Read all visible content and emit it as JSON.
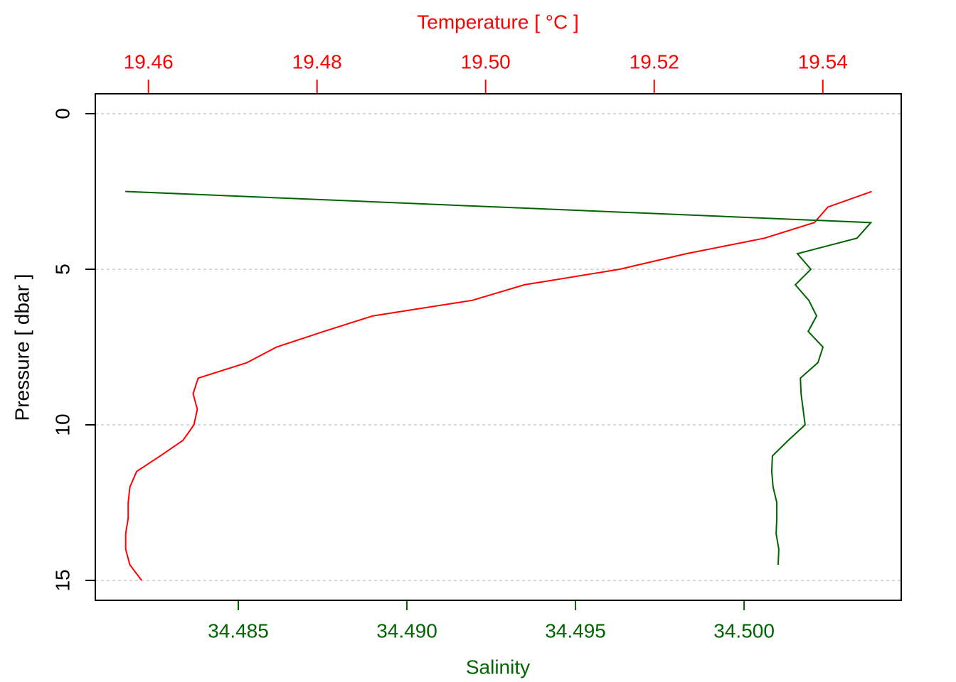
{
  "chart_data": {
    "type": "profile",
    "ylabel": "Pressure [ dbar ]",
    "ylim": [
      15.64,
      -0.64
    ],
    "yticks": [
      0,
      5,
      10,
      15
    ],
    "grid": true,
    "x2label": "Temperature [ °C ]",
    "x2label_color": "#ff0000",
    "x2lim": [
      19.4537,
      19.5493
    ],
    "x2ticks": [
      19.46,
      19.48,
      {
        "value": 19.5,
        "label": "19.50"
      },
      19.52,
      19.54
    ],
    "xlabel": "Salinity",
    "xlabel_color": "#006400",
    "xlim": [
      34.48076,
      34.50466
    ],
    "xticks": [
      34.485,
      {
        "value": 34.49,
        "label": "34.490"
      },
      34.495,
      {
        "value": 34.5,
        "label": "34.500"
      }
    ],
    "series": [
      {
        "axis": "x2",
        "color": "#ff0000",
        "pressure": [
          2.5,
          3.0,
          3.5,
          4.0,
          4.5,
          5.0,
          5.5,
          6.0,
          6.5,
          7.0,
          7.5,
          8.0,
          8.5,
          9.0,
          9.5,
          10.0,
          10.5,
          11.0,
          11.5,
          12.0,
          12.5,
          13.0,
          13.5,
          14.0,
          14.5,
          15.0
        ],
        "values": [
          19.5458,
          19.5406,
          19.539,
          19.5331,
          19.5238,
          19.5159,
          19.5046,
          19.4984,
          19.4866,
          19.4808,
          19.4752,
          19.4717,
          19.4659,
          19.4653,
          19.4658,
          19.4654,
          19.4641,
          19.4614,
          19.4586,
          19.4578,
          19.4576,
          19.4576,
          19.4573,
          19.4573,
          19.4578,
          19.4592
        ]
      },
      {
        "axis": "x",
        "color": "#006400",
        "pressure": [
          2.5,
          3.5,
          4.0,
          4.5,
          5.0,
          5.5,
          6.0,
          6.5,
          7.0,
          7.5,
          8.0,
          8.5,
          9.0,
          9.5,
          10.0,
          10.5,
          11.0,
          11.5,
          12.0,
          12.5,
          13.0,
          13.5,
          14.0,
          14.5
        ],
        "values": [
          34.48165,
          34.50376,
          34.50335,
          34.50158,
          34.50198,
          34.50152,
          34.50192,
          34.50215,
          34.5019,
          34.50234,
          34.50219,
          34.50167,
          34.50169,
          34.50175,
          34.50181,
          34.50131,
          34.50084,
          34.50082,
          34.50086,
          34.50097,
          34.50097,
          34.50095,
          34.50103,
          34.50101
        ]
      }
    ]
  }
}
